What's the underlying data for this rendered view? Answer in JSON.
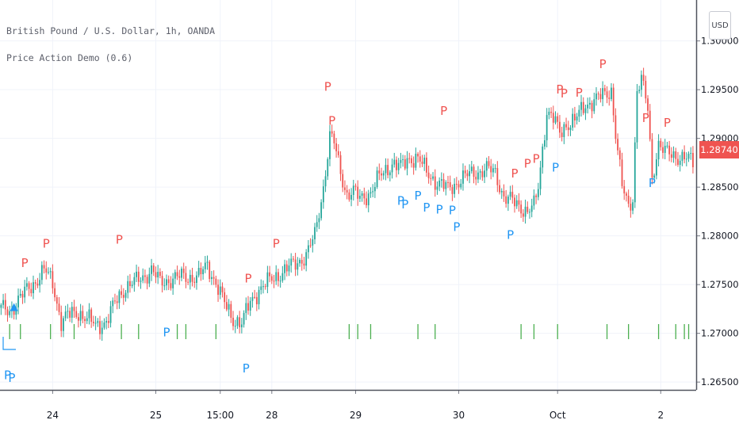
{
  "chart_data": {
    "type": "candlestick",
    "title": "British Pound / U.S. Dollar, 1h, OANDA",
    "indicator": "Price Action Demo (0.6)",
    "currency_button": "USD",
    "last_price": "1.28740",
    "ylim": [
      1.2642,
      1.3042
    ],
    "y_ticks": [
      "1.26500",
      "1.27000",
      "1.27500",
      "1.28000",
      "1.28500",
      "1.29000",
      "1.29500",
      "1.30000"
    ],
    "y_tick_values": [
      1.265,
      1.27,
      1.275,
      1.28,
      1.285,
      1.29,
      1.295,
      1.3
    ],
    "x_ticks": [
      {
        "label": "24",
        "bar": 24
      },
      {
        "label": "25",
        "bar": 72
      },
      {
        "label": "15:00",
        "bar": 102
      },
      {
        "label": "28",
        "bar": 126
      },
      {
        "label": "29",
        "bar": 165
      },
      {
        "label": "30",
        "bar": 213
      },
      {
        "label": "Oct",
        "bar": 259
      },
      {
        "label": "2",
        "bar": 307
      }
    ],
    "bar_count": 324,
    "bars_visible": 323,
    "anchors": [
      [
        0,
        1.2725
      ],
      [
        4,
        1.2722
      ],
      [
        8,
        1.2735
      ],
      [
        14,
        1.2748
      ],
      [
        20,
        1.2765
      ],
      [
        24,
        1.2752
      ],
      [
        28,
        1.2712
      ],
      [
        31,
        1.2718
      ],
      [
        36,
        1.2722
      ],
      [
        44,
        1.2708
      ],
      [
        49,
        1.2712
      ],
      [
        54,
        1.2735
      ],
      [
        58,
        1.2748
      ],
      [
        62,
        1.2752
      ],
      [
        66,
        1.2758
      ],
      [
        70,
        1.2765
      ],
      [
        74,
        1.2752
      ],
      [
        78,
        1.2755
      ],
      [
        84,
        1.2758
      ],
      [
        92,
        1.2758
      ],
      [
        96,
        1.277
      ],
      [
        100,
        1.2752
      ],
      [
        104,
        1.273
      ],
      [
        108,
        1.2715
      ],
      [
        112,
        1.271
      ],
      [
        116,
        1.2732
      ],
      [
        120,
        1.2745
      ],
      [
        124,
        1.2752
      ],
      [
        130,
        1.2762
      ],
      [
        136,
        1.277
      ],
      [
        142,
        1.278
      ],
      [
        146,
        1.28
      ],
      [
        150,
        1.285
      ],
      [
        153,
        1.2902
      ],
      [
        155,
        1.2895
      ],
      [
        158,
        1.2865
      ],
      [
        161,
        1.2843
      ],
      [
        164,
        1.2845
      ],
      [
        167,
        1.2838
      ],
      [
        172,
        1.2845
      ],
      [
        176,
        1.286
      ],
      [
        182,
        1.2875
      ],
      [
        186,
        1.287
      ],
      [
        190,
        1.288
      ],
      [
        194,
        1.288
      ],
      [
        198,
        1.2865
      ],
      [
        203,
        1.2855
      ],
      [
        208,
        1.2848
      ],
      [
        214,
        1.2858
      ],
      [
        220,
        1.2865
      ],
      [
        226,
        1.2868
      ],
      [
        230,
        1.2865
      ],
      [
        234,
        1.284
      ],
      [
        238,
        1.2835
      ],
      [
        242,
        1.283
      ],
      [
        245,
        1.2825
      ],
      [
        248,
        1.283
      ],
      [
        250,
        1.285
      ],
      [
        252,
        1.289
      ],
      [
        254,
        1.2928
      ],
      [
        257,
        1.292
      ],
      [
        260,
        1.2905
      ],
      [
        263,
        1.2915
      ],
      [
        267,
        1.2918
      ],
      [
        272,
        1.2935
      ],
      [
        277,
        1.294
      ],
      [
        281,
        1.2945
      ],
      [
        284,
        1.295
      ],
      [
        286,
        1.2905
      ],
      [
        289,
        1.285
      ],
      [
        292,
        1.283
      ],
      [
        294,
        1.284
      ],
      [
        296,
        1.295
      ],
      [
        298,
        1.296
      ],
      [
        301,
        1.293
      ],
      [
        303,
        1.286
      ],
      [
        306,
        1.2895
      ],
      [
        309,
        1.2885
      ],
      [
        313,
        1.2883
      ],
      [
        318,
        1.288
      ],
      [
        323,
        1.2874
      ]
    ],
    "signals_above": [
      {
        "label": "P",
        "bar": 11,
        "price": 1.2768
      },
      {
        "label": "P",
        "bar": 21,
        "price": 1.2788
      },
      {
        "label": "P",
        "bar": 55,
        "price": 1.2792
      },
      {
        "label": "P",
        "bar": 115,
        "price": 1.2752
      },
      {
        "label": "P",
        "bar": 128,
        "price": 1.2788
      },
      {
        "label": "P",
        "bar": 152,
        "price": 1.2949
      },
      {
        "label": "P",
        "bar": 154,
        "price": 1.2914
      },
      {
        "label": "P",
        "bar": 206,
        "price": 1.2924
      },
      {
        "label": "P",
        "bar": 239,
        "price": 1.286
      },
      {
        "label": "P",
        "bar": 245,
        "price": 1.287
      },
      {
        "label": "P",
        "bar": 249,
        "price": 1.2875
      },
      {
        "label": "P",
        "bar": 260,
        "price": 1.2946
      },
      {
        "label": "P",
        "bar": 262,
        "price": 1.2942
      },
      {
        "label": "P",
        "bar": 269,
        "price": 1.2943
      },
      {
        "label": "P",
        "bar": 280,
        "price": 1.2972
      },
      {
        "label": "P",
        "bar": 300,
        "price": 1.2917
      },
      {
        "label": "P",
        "bar": 310,
        "price": 1.2912
      }
    ],
    "signals_below": [
      {
        "label": "P",
        "bar": 3,
        "price": 1.2653
      },
      {
        "label": "P",
        "bar": 5,
        "price": 1.265
      },
      {
        "label": "P",
        "bar": 77,
        "price": 1.2697
      },
      {
        "label": "P",
        "bar": 114,
        "price": 1.266
      },
      {
        "label": "P",
        "bar": 186,
        "price": 1.2832
      },
      {
        "label": "P",
        "bar": 188,
        "price": 1.2828
      },
      {
        "label": "P",
        "bar": 194,
        "price": 1.2837
      },
      {
        "label": "P",
        "bar": 198,
        "price": 1.2825
      },
      {
        "label": "P",
        "bar": 204,
        "price": 1.2823
      },
      {
        "label": "P",
        "bar": 210,
        "price": 1.2822
      },
      {
        "label": "P",
        "bar": 212,
        "price": 1.2805
      },
      {
        "label": "P",
        "bar": 237,
        "price": 1.2797
      },
      {
        "label": "P",
        "bar": 258,
        "price": 1.2866
      },
      {
        "label": "P",
        "bar": 303,
        "price": 1.285
      }
    ],
    "marker_bars": [
      4,
      9,
      23,
      34,
      56,
      64,
      82,
      86,
      100,
      162,
      166,
      172,
      194,
      202,
      242,
      248,
      259,
      282,
      292,
      306,
      314,
      318,
      320
    ],
    "triangle_marker": {
      "bar": 6,
      "price": 1.2727
    },
    "colors": {
      "up": "#26a69a",
      "down": "#ef5350",
      "signal_high": "#ef5350",
      "signal_low": "#2196f3",
      "marker": "#4caf50",
      "grid": "#f0f3fa",
      "axis": "#787b86"
    }
  }
}
